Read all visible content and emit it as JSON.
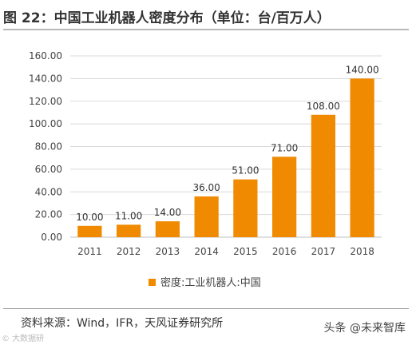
{
  "title": "图 22：中国工业机器人密度分布（单位：台/百万人）",
  "source": "资料来源：Wind，IFR，天风证券研究所",
  "watermark_right": "头条 @未来智库",
  "watermark_left": "© 大数据研",
  "colors": {
    "bar": "#f08a00",
    "grid": "#d9d9d9",
    "axis": "#bfbfbf"
  },
  "chart_data": {
    "type": "bar",
    "categories": [
      "2011",
      "2012",
      "2013",
      "2014",
      "2015",
      "2016",
      "2017",
      "2018"
    ],
    "series": [
      {
        "name": "密度:工业机器人:中国",
        "values": [
          10,
          11,
          14,
          36,
          51,
          71,
          108,
          140
        ]
      }
    ],
    "data_labels": [
      "10.00",
      "11.00",
      "14.00",
      "36.00",
      "51.00",
      "71.00",
      "108.00",
      "140.00"
    ],
    "y_ticks": [
      "0.00",
      "20.00",
      "40.00",
      "60.00",
      "80.00",
      "100.00",
      "120.00",
      "140.00",
      "160.00"
    ],
    "ylim": [
      0,
      160
    ],
    "grid": true,
    "legend": "bottom-center"
  }
}
